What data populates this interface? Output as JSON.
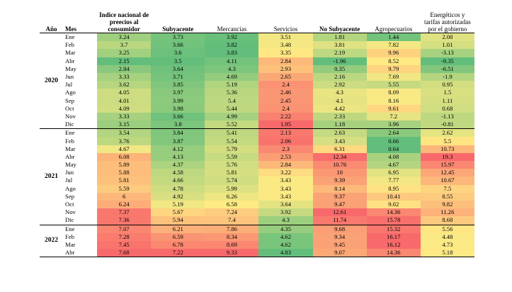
{
  "headers": {
    "year": "Año",
    "month": "Mes",
    "cols": [
      "Indice nacional de preecios al consumidor",
      "Subyacente",
      "Mercancías",
      "Servicios",
      "No Subyacente",
      "Agropecuarios",
      "Energéticos y tarifas autorizadas por el gobierno"
    ]
  },
  "colors": {
    "green": "#63be7b",
    "yellow": "#ffeb84",
    "red": "#f8696b"
  },
  "groups": [
    {
      "year": "2020",
      "rows": [
        {
          "mes": "Ene",
          "v": [
            "3.24",
            "3.73",
            "3.92",
            "3.51",
            "1.81",
            "1.44",
            "2.08"
          ]
        },
        {
          "mes": "Feb",
          "v": [
            "3.7",
            "3.66",
            "3.82",
            "3.48",
            "3.81",
            "7.82",
            "1.01"
          ]
        },
        {
          "mes": "Mar",
          "v": [
            "3.25",
            "3.6",
            "3.83",
            "3.35",
            "2.19",
            "9.96",
            "-3.13"
          ]
        },
        {
          "mes": "Abr",
          "v": [
            "2.15",
            "3.5",
            "4.11",
            "2.84",
            "-1.96",
            "8.52",
            "-9.35"
          ]
        },
        {
          "mes": "May",
          "v": [
            "2.84",
            "3.64",
            "4.3",
            "2.93",
            "0.35",
            "9.79",
            "-6.51"
          ]
        },
        {
          "mes": "Jun",
          "v": [
            "3.33",
            "3.71",
            "4.69",
            "2.65",
            "2.16",
            "7.69",
            "-1.9"
          ]
        },
        {
          "mes": "Jul",
          "v": [
            "3.62",
            "3.85",
            "5.19",
            "2.4",
            "2.92",
            "5.55",
            "0.95"
          ]
        },
        {
          "mes": "Ago",
          "v": [
            "4.05",
            "3.97",
            "5.36",
            "2.46",
            "4.3",
            "8.09",
            "1.5"
          ]
        },
        {
          "mes": "Sep",
          "v": [
            "4.01",
            "3.99",
            "5.4",
            "2.45",
            "4.1",
            "8.16",
            "1.11"
          ]
        },
        {
          "mes": "Oct",
          "v": [
            "4.09",
            "3.98",
            "5.44",
            "2.4",
            "4.42",
            "9.61",
            "0.68"
          ]
        },
        {
          "mes": "Nov",
          "v": [
            "3.33",
            "3.66",
            "4.99",
            "2.22",
            "2.33",
            "7.2",
            "-1.13"
          ]
        },
        {
          "mes": "Dic",
          "v": [
            "3.15",
            "3.8",
            "5.52",
            "1.95",
            "1.18",
            "3.96",
            "-0.81"
          ]
        }
      ]
    },
    {
      "year": "2021",
      "rows": [
        {
          "mes": "Ene",
          "v": [
            "3.54",
            "3.84",
            "5.41",
            "2.13",
            "2.63",
            "2.64",
            "2.62"
          ]
        },
        {
          "mes": "Feb",
          "v": [
            "3.76",
            "3.87",
            "5.54",
            "2.06",
            "3.43",
            "0.66",
            "5.5"
          ]
        },
        {
          "mes": "Mar",
          "v": [
            "4.67",
            "4.12",
            "5.79",
            "2.3",
            "6.31",
            "0.64",
            "10.73"
          ]
        },
        {
          "mes": "Abr",
          "v": [
            "6.08",
            "4.13",
            "5.59",
            "2.53",
            "12.34",
            "4.08",
            "19.3"
          ]
        },
        {
          "mes": "May",
          "v": [
            "5.89",
            "4.37",
            "5.76",
            "2.84",
            "10.76",
            "4.67",
            "15.97"
          ]
        },
        {
          "mes": "Jun",
          "v": [
            "5.88",
            "4.58",
            "5.81",
            "3.22",
            "10",
            "6.95",
            "12.45"
          ]
        },
        {
          "mes": "Jul",
          "v": [
            "5.81",
            "4.66",
            "5.74",
            "3.43",
            "9.39",
            "7.77",
            "10.67"
          ]
        },
        {
          "mes": "Ago",
          "v": [
            "5.59",
            "4.78",
            "5.99",
            "3.43",
            "8.14",
            "8.95",
            "7.5"
          ]
        },
        {
          "mes": "Sep",
          "v": [
            "6",
            "4.92",
            "6.26",
            "3.43",
            "9.37",
            "10.41",
            "8.55"
          ]
        },
        {
          "mes": "Oct",
          "v": [
            "6.24",
            "5.19",
            "6.58",
            "3.64",
            "9.47",
            "9.02",
            "9.82"
          ]
        },
        {
          "mes": "Nov",
          "v": [
            "7.37",
            "5.67",
            "7.24",
            "3.92",
            "12.61",
            "14.36",
            "11.26"
          ]
        },
        {
          "mes": "Dic",
          "v": [
            "7.36",
            "5.94",
            "7.4",
            "4.3",
            "11.74",
            "15.78",
            "8.68"
          ]
        }
      ]
    },
    {
      "year": "2022",
      "rows": [
        {
          "mes": "Ene",
          "v": [
            "7.07",
            "6.21",
            "7.86",
            "4.35",
            "9.68",
            "15.32",
            "5.56"
          ]
        },
        {
          "mes": "Feb",
          "v": [
            "7.28",
            "6.59",
            "8.34",
            "4.62",
            "9.34",
            "16.17",
            "4.48"
          ]
        },
        {
          "mes": "Mar",
          "v": [
            "7.45",
            "6.78",
            "8.69",
            "4.62",
            "9.45",
            "16.12",
            "4.73"
          ]
        },
        {
          "mes": "Abr",
          "v": [
            "7.68",
            "7.22",
            "9.33",
            "4.83",
            "9.07",
            "14.36",
            "5.18"
          ]
        }
      ]
    }
  ],
  "scales": [
    {
      "dir": "low-green"
    },
    {
      "dir": "low-green"
    },
    {
      "dir": "low-green"
    },
    {
      "dir": "high-green"
    },
    {
      "dir": "low-green"
    },
    {
      "dir": "low-green"
    },
    {
      "dir": "low-green"
    }
  ]
}
